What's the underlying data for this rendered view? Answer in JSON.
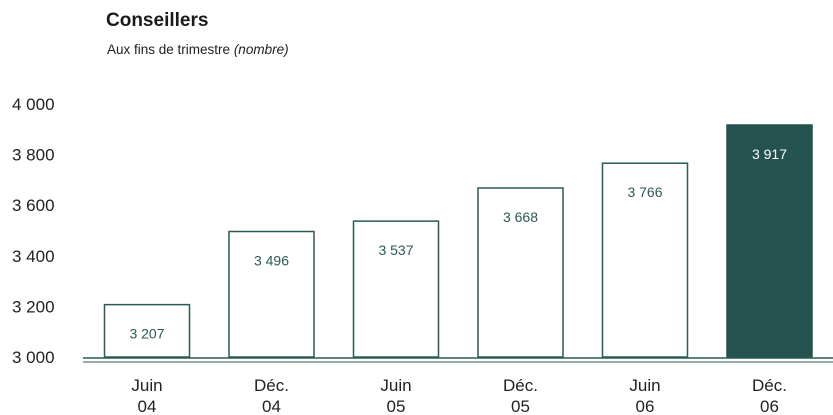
{
  "title": "Conseillers",
  "subtitle": "Aux fins de trimestre",
  "subtitle_unit": "(nombre)",
  "colors": {
    "bar_outline": "#2a5a55",
    "bar_highlight": "#24524e",
    "label_text": "#2a5a55",
    "axis": "#2a5a55"
  },
  "chart_data": {
    "type": "bar",
    "categories": [
      [
        "Juin",
        "04"
      ],
      [
        "Déc.",
        "04"
      ],
      [
        "Juin",
        "05"
      ],
      [
        "Déc.",
        "05"
      ],
      [
        "Juin",
        "06"
      ],
      [
        "Déc.",
        "06"
      ]
    ],
    "values": [
      3207,
      3496,
      3537,
      3668,
      3766,
      3917
    ],
    "value_labels": [
      "3 207",
      "3 496",
      "3 537",
      "3 668",
      "3 766",
      "3 917"
    ],
    "highlight_index": 5,
    "ylim": [
      3000,
      4000
    ],
    "yticks": [
      3000,
      3200,
      3400,
      3600,
      3800,
      4000
    ],
    "ytick_labels": [
      "3 000",
      "3 200",
      "3 400",
      "3 600",
      "3 800",
      "4 000"
    ],
    "grid": false,
    "xlabel": "",
    "ylabel": ""
  }
}
